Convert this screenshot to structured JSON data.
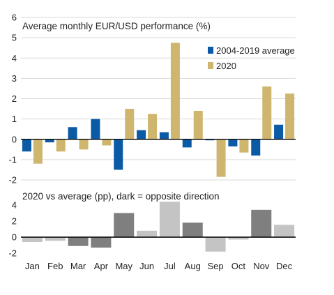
{
  "chart_data": [
    {
      "type": "bar",
      "title": "Average monthly EUR/USD performance (%)",
      "categories": [
        "Jan",
        "Feb",
        "Mar",
        "Apr",
        "May",
        "Jun",
        "Jul",
        "Aug",
        "Sep",
        "Oct",
        "Nov",
        "Dec"
      ],
      "series": [
        {
          "name": "2004-2019 average",
          "color": "#0b5aa5",
          "values": [
            -0.6,
            -0.15,
            0.6,
            1.0,
            -1.5,
            0.45,
            0.35,
            -0.4,
            -0.05,
            -0.35,
            -0.8,
            0.72
          ]
        },
        {
          "name": "2020",
          "color": "#cfb66f",
          "values": [
            -1.2,
            -0.6,
            -0.5,
            -0.3,
            1.5,
            1.25,
            4.75,
            1.4,
            -1.85,
            -0.65,
            2.6,
            2.25
          ]
        }
      ],
      "y_ticks": [
        "6",
        "5",
        "4",
        "3",
        "2",
        "1",
        "0",
        "-1",
        "-2"
      ],
      "ylim": [
        -2,
        6
      ],
      "grid": true,
      "legend_position": "top-right"
    },
    {
      "type": "bar",
      "title": "2020 vs average (pp), dark = opposite direction",
      "categories": [
        "Jan",
        "Feb",
        "Mar",
        "Apr",
        "May",
        "Jun",
        "Jul",
        "Aug",
        "Sep",
        "Oct",
        "Nov",
        "Dec"
      ],
      "values": [
        -0.6,
        -0.45,
        -1.1,
        -1.3,
        3.0,
        0.8,
        4.4,
        1.8,
        -1.8,
        -0.3,
        3.4,
        1.53
      ],
      "opposite_direction": [
        false,
        false,
        true,
        true,
        true,
        false,
        false,
        true,
        false,
        false,
        true,
        false
      ],
      "colors": {
        "dark": "#7f7f7f",
        "light": "#c4c4c4"
      },
      "y_ticks": [
        "4",
        "2",
        "0",
        "-2"
      ],
      "ylim": [
        -2.6,
        4.6
      ],
      "grid": false
    }
  ]
}
